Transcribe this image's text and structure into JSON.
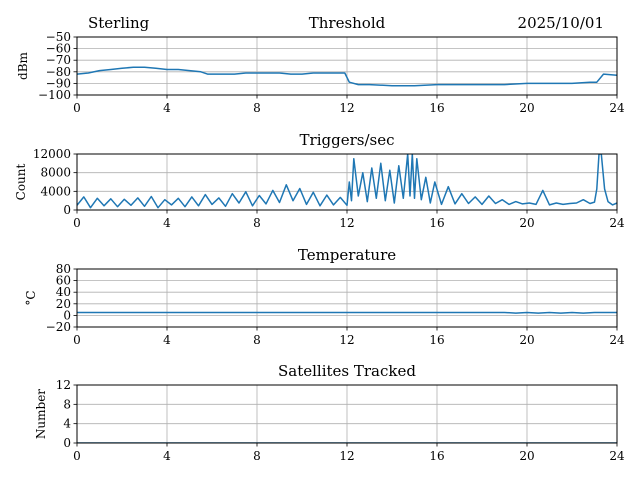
{
  "header": {
    "left": "Sterling",
    "date": "2025/10/01"
  },
  "chart_data": [
    {
      "type": "line",
      "title": "Threshold",
      "ylabel": "dBm",
      "xlabel": "",
      "xlim": [
        0,
        24
      ],
      "ylim": [
        -100,
        -50
      ],
      "xticks": [
        0,
        4,
        8,
        12,
        16,
        20,
        24
      ],
      "yticks": [
        -100,
        -90,
        -80,
        -70,
        -60,
        -50
      ],
      "ytick_labels": [
        "−100",
        "−90",
        "−80",
        "−70",
        "−60",
        "−50"
      ],
      "grid": true,
      "color": "#1f77b4",
      "series": [
        {
          "name": "Threshold",
          "x": [
            0,
            0.5,
            1,
            1.5,
            2,
            2.5,
            3,
            3.5,
            4,
            4.5,
            5,
            5.5,
            5.8,
            6.5,
            7,
            7.5,
            8,
            8.5,
            9,
            9.5,
            10,
            10.5,
            11,
            11.5,
            11.9,
            12.1,
            12.5,
            13,
            14,
            15,
            16,
            17,
            18,
            19,
            20,
            21,
            22,
            22.8,
            23.1,
            23.4,
            24
          ],
          "y": [
            -82,
            -81,
            -79,
            -78,
            -77,
            -76,
            -76,
            -77,
            -78,
            -78,
            -79,
            -80,
            -82,
            -82,
            -82,
            -81,
            -81,
            -81,
            -81,
            -82,
            -82,
            -81,
            -81,
            -81,
            -81,
            -89,
            -91,
            -91,
            -92,
            -92,
            -91,
            -91,
            -91,
            -91,
            -90,
            -90,
            -90,
            -89,
            -89,
            -82,
            -83
          ]
        }
      ]
    },
    {
      "type": "line",
      "title": "Triggers/sec",
      "ylabel": "Count",
      "xlabel": "",
      "xlim": [
        0,
        24
      ],
      "ylim": [
        0,
        12000
      ],
      "xticks": [
        0,
        4,
        8,
        12,
        16,
        20,
        24
      ],
      "yticks": [
        0,
        4000,
        8000,
        12000
      ],
      "ytick_labels": [
        "0",
        "4000",
        "8000",
        "12000"
      ],
      "grid": true,
      "color": "#1f77b4",
      "series": [
        {
          "name": "Triggers/sec",
          "x": [
            0,
            0.3,
            0.6,
            0.9,
            1.2,
            1.5,
            1.8,
            2.1,
            2.4,
            2.7,
            3,
            3.3,
            3.6,
            3.9,
            4.2,
            4.5,
            4.8,
            5.1,
            5.4,
            5.7,
            6,
            6.3,
            6.6,
            6.9,
            7.2,
            7.5,
            7.8,
            8.1,
            8.4,
            8.7,
            9,
            9.3,
            9.6,
            9.9,
            10.2,
            10.5,
            10.8,
            11.1,
            11.4,
            11.7,
            12,
            12.1,
            12.2,
            12.3,
            12.5,
            12.7,
            12.9,
            13.1,
            13.3,
            13.5,
            13.7,
            13.9,
            14.1,
            14.3,
            14.5,
            14.7,
            14.8,
            14.9,
            15,
            15.1,
            15.3,
            15.5,
            15.7,
            15.9,
            16.2,
            16.5,
            16.8,
            17.1,
            17.4,
            17.7,
            18,
            18.3,
            18.6,
            18.9,
            19.2,
            19.5,
            19.8,
            20.1,
            20.4,
            20.7,
            21,
            21.3,
            21.6,
            21.9,
            22.2,
            22.5,
            22.8,
            23.0,
            23.1,
            23.2,
            23.3,
            23.45,
            23.6,
            23.8,
            24
          ],
          "y": [
            1000,
            2800,
            500,
            2500,
            900,
            2400,
            700,
            2300,
            1000,
            2600,
            800,
            2900,
            500,
            2200,
            1100,
            2500,
            700,
            2800,
            900,
            3300,
            1200,
            2600,
            800,
            3500,
            1500,
            3900,
            900,
            3100,
            1300,
            4200,
            1600,
            5400,
            2000,
            4600,
            1200,
            3800,
            900,
            3200,
            1100,
            2700,
            1000,
            6000,
            2000,
            11000,
            3000,
            8000,
            1800,
            9000,
            2500,
            10000,
            2000,
            8500,
            1500,
            9500,
            2500,
            12000,
            3000,
            12000,
            2500,
            11000,
            2200,
            7000,
            1500,
            6000,
            1200,
            5000,
            1300,
            3500,
            1400,
            2800,
            1200,
            3000,
            1400,
            2200,
            1200,
            1800,
            1300,
            1500,
            1200,
            4200,
            1100,
            1500,
            1200,
            1400,
            1500,
            2200,
            1400,
            1700,
            4500,
            12000,
            12000,
            4500,
            1800,
            1100,
            1500
          ]
        }
      ]
    },
    {
      "type": "line",
      "title": "Temperature",
      "ylabel": "°C",
      "xlabel": "",
      "xlim": [
        0,
        24
      ],
      "ylim": [
        -20,
        80
      ],
      "xticks": [
        0,
        4,
        8,
        12,
        16,
        20,
        24
      ],
      "yticks": [
        -20,
        0,
        20,
        40,
        60,
        80
      ],
      "ytick_labels": [
        "−20",
        "0",
        "20",
        "40",
        "60",
        "80"
      ],
      "grid": true,
      "color": "#1f77b4",
      "series": [
        {
          "name": "Temperature",
          "x": [
            0,
            6,
            12,
            18,
            19,
            19.5,
            20,
            20.5,
            21,
            21.5,
            22,
            22.5,
            23,
            24
          ],
          "y": [
            5,
            5,
            5,
            5,
            5,
            4,
            5,
            4,
            5,
            4,
            5,
            4,
            5,
            5
          ]
        }
      ]
    },
    {
      "type": "line",
      "title": "Satellites Tracked",
      "ylabel": "Number",
      "xlabel": "",
      "xlim": [
        0,
        24
      ],
      "ylim": [
        0,
        12
      ],
      "xticks": [
        0,
        4,
        8,
        12,
        16,
        20,
        24
      ],
      "yticks": [
        0,
        4,
        8,
        12
      ],
      "ytick_labels": [
        "0",
        "4",
        "8",
        "12"
      ],
      "grid": true,
      "color": "#1f77b4",
      "series": [
        {
          "name": "Satellites",
          "x": [
            0,
            24
          ],
          "y": [
            0,
            0
          ]
        }
      ]
    }
  ]
}
